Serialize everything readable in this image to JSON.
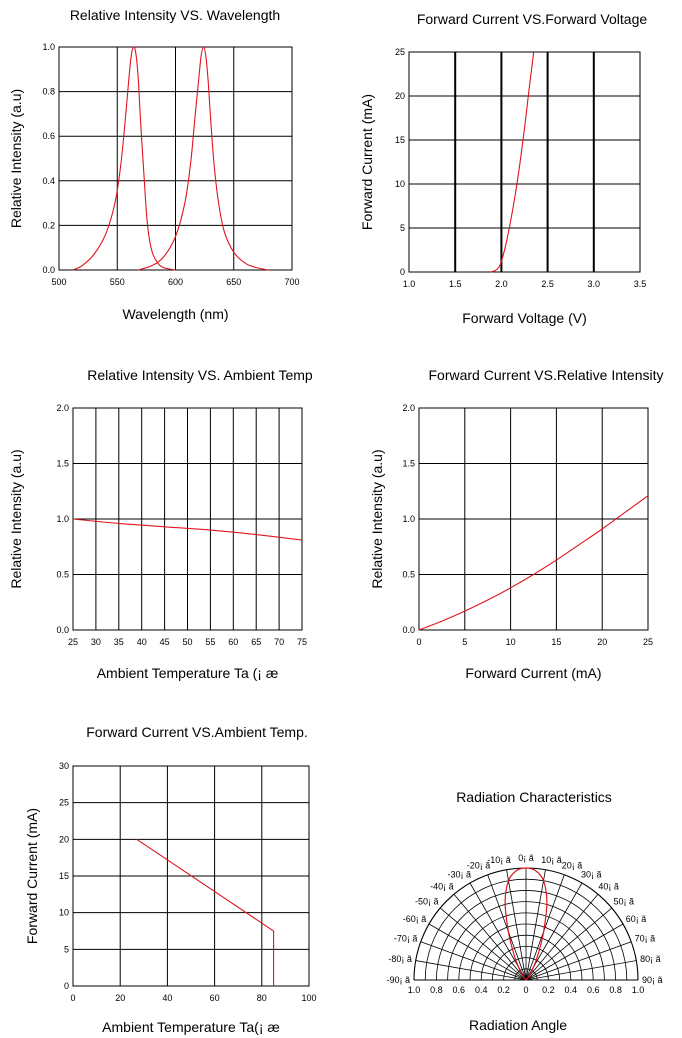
{
  "colors": {
    "curve": "#e0141e",
    "grid": "#000000"
  },
  "chart_data": [
    {
      "id": "spectrum",
      "type": "line",
      "title": "Relative Intensity VS. Wavelength",
      "xlabel": "Wavelength (nm)",
      "ylabel": "Relative Intensity (a.u)",
      "xlim": [
        500,
        700
      ],
      "ylim": [
        0,
        1.0
      ],
      "x_ticks": [
        500,
        550,
        600,
        650,
        700
      ],
      "x_tick_labels": [
        "500",
        "550",
        "600",
        "650",
        "700"
      ],
      "y_ticks": [
        0,
        0.2,
        0.4,
        0.6,
        0.8,
        1.0
      ],
      "y_tick_labels": [
        "0.0",
        "0.2",
        "0.4",
        "0.6",
        "0.8",
        "1.0"
      ],
      "grid": true,
      "series": [
        {
          "x": [
            512,
            520,
            530,
            540,
            548,
            553,
            557,
            560,
            562,
            564,
            566,
            568,
            570,
            573,
            576,
            580,
            585,
            590,
            600
          ],
          "y": [
            0.0,
            0.02,
            0.07,
            0.16,
            0.3,
            0.47,
            0.68,
            0.86,
            0.96,
            1.0,
            0.97,
            0.86,
            0.67,
            0.42,
            0.2,
            0.08,
            0.03,
            0.01,
            0.0
          ]
        },
        {
          "x": [
            568,
            580,
            590,
            600,
            608,
            613,
            617,
            620,
            622,
            624,
            626,
            628,
            630,
            633,
            637,
            642,
            650,
            660,
            670,
            680
          ],
          "y": [
            0.0,
            0.02,
            0.06,
            0.15,
            0.3,
            0.48,
            0.7,
            0.86,
            0.96,
            1.0,
            0.96,
            0.85,
            0.69,
            0.48,
            0.3,
            0.17,
            0.08,
            0.03,
            0.01,
            0.0
          ]
        }
      ]
    },
    {
      "id": "ivcurve",
      "type": "line",
      "title": "Forward Current VS.Forward Voltage",
      "xlabel": "Forward Voltage (V)",
      "ylabel": "Forward Current (mA)",
      "xlim": [
        1.0,
        3.5
      ],
      "ylim": [
        0,
        25
      ],
      "x_ticks": [
        1.0,
        1.5,
        2.0,
        2.5,
        3.0,
        3.5
      ],
      "x_tick_labels": [
        "1.0",
        "1.5",
        "2.0",
        "2.5",
        "3.0",
        "3.5"
      ],
      "y_ticks": [
        0,
        5,
        10,
        15,
        20,
        25
      ],
      "y_tick_labels": [
        "0",
        "5",
        "10",
        "15",
        "20",
        "25"
      ],
      "grid": true,
      "series": [
        {
          "x": [
            1.88,
            1.93,
            1.97,
            2.0,
            2.05,
            2.1,
            2.15,
            2.2,
            2.25,
            2.3,
            2.35
          ],
          "y": [
            0.0,
            0.15,
            0.5,
            1.2,
            3.2,
            5.8,
            8.8,
            12.3,
            16.3,
            20.8,
            25.0
          ]
        }
      ]
    },
    {
      "id": "temp_intensity",
      "type": "line",
      "title": "Relative Intensity VS. Ambient Temp",
      "xlabel": "Ambient Temperature Ta (¡ æ",
      "ylabel": "Relative Intensity (a.u)",
      "xlim": [
        25,
        75
      ],
      "ylim": [
        0,
        2.0
      ],
      "x_ticks": [
        25,
        30,
        35,
        40,
        45,
        50,
        55,
        60,
        65,
        70,
        75
      ],
      "x_tick_labels": [
        "25",
        "30",
        "35",
        "40",
        "45",
        "50",
        "55",
        "60",
        "65",
        "70",
        "75"
      ],
      "y_ticks": [
        0,
        0.5,
        1.0,
        1.5,
        2.0
      ],
      "y_tick_labels": [
        "0.0",
        "0.5",
        "1.0",
        "1.5",
        "2.0"
      ],
      "grid": true,
      "series": [
        {
          "x": [
            25,
            35,
            45,
            55,
            65,
            75
          ],
          "y": [
            1.0,
            0.96,
            0.93,
            0.9,
            0.86,
            0.81
          ]
        }
      ]
    },
    {
      "id": "current_intensity",
      "type": "line",
      "title": "Forward Current VS.Relative Intensity",
      "xlabel": "Forward Current (mA)",
      "ylabel": "Relative Intensity (a.u)",
      "xlim": [
        0,
        25
      ],
      "ylim": [
        0,
        2.0
      ],
      "x_ticks": [
        0,
        5,
        10,
        15,
        20,
        25
      ],
      "x_tick_labels": [
        "0",
        "5",
        "10",
        "15",
        "20",
        "25"
      ],
      "y_ticks": [
        0,
        0.5,
        1.0,
        1.5,
        2.0
      ],
      "y_tick_labels": [
        "0.0",
        "0.5",
        "1.0",
        "1.5",
        "2.0"
      ],
      "grid": true,
      "series": [
        {
          "x": [
            0,
            2.5,
            5,
            7.5,
            10,
            12.5,
            15,
            17.5,
            20,
            22.5,
            25
          ],
          "y": [
            0.0,
            0.08,
            0.17,
            0.27,
            0.38,
            0.5,
            0.63,
            0.77,
            0.91,
            1.06,
            1.21
          ]
        }
      ]
    },
    {
      "id": "derating",
      "type": "line",
      "title": "Forward Current VS.Ambient Temp.",
      "xlabel": "Ambient Temperature Ta(¡ æ",
      "ylabel": "Forward Current (mA)",
      "xlim": [
        0,
        100
      ],
      "ylim": [
        0,
        30
      ],
      "x_ticks": [
        0,
        20,
        40,
        60,
        80,
        100
      ],
      "x_tick_labels": [
        "0",
        "20",
        "40",
        "60",
        "80",
        "100"
      ],
      "y_ticks": [
        0,
        5,
        10,
        15,
        20,
        25,
        30
      ],
      "y_tick_labels": [
        "0",
        "5",
        "10",
        "15",
        "20",
        "25",
        "30"
      ],
      "grid": true,
      "series": [
        {
          "x": [
            27,
            85,
            85
          ],
          "y": [
            20,
            7.5,
            0
          ]
        }
      ]
    },
    {
      "id": "radiation",
      "type": "line",
      "title": "Radiation Characteristics",
      "xlabel": "Radiation Angle",
      "ylabel": "",
      "x_tick_labels": [
        "1.0",
        "0.8",
        "0.6",
        "0.4",
        "0.2",
        "0",
        "0.2",
        "0.4",
        "0.6",
        "0.8",
        "1.0"
      ],
      "angle_labels": [
        "-90¡ ã",
        "-80¡ ã",
        "-70¡ ã",
        "-60¡ ã",
        "-50¡ ã",
        "-40¡ ã",
        "-30¡ ã",
        "-20¡ ã",
        "-10¡ ã",
        "0¡ ã",
        "10¡ ã",
        "20¡ ã",
        "30¡ ã",
        "40¡ ã",
        "50¡ ã",
        "60¡ ã",
        "70¡ ã",
        "80¡ ã",
        "90¡ ã"
      ],
      "grid": true,
      "series": [
        {
          "angle": [
            -90,
            -40,
            -30,
            -25,
            -20,
            -15,
            -10,
            -5,
            0,
            5,
            10,
            15,
            20,
            25,
            30,
            40,
            90
          ],
          "value": [
            0.0,
            0.03,
            0.14,
            0.26,
            0.46,
            0.72,
            0.9,
            0.98,
            1.0,
            0.98,
            0.9,
            0.72,
            0.46,
            0.26,
            0.14,
            0.03,
            0.0
          ]
        }
      ]
    }
  ]
}
